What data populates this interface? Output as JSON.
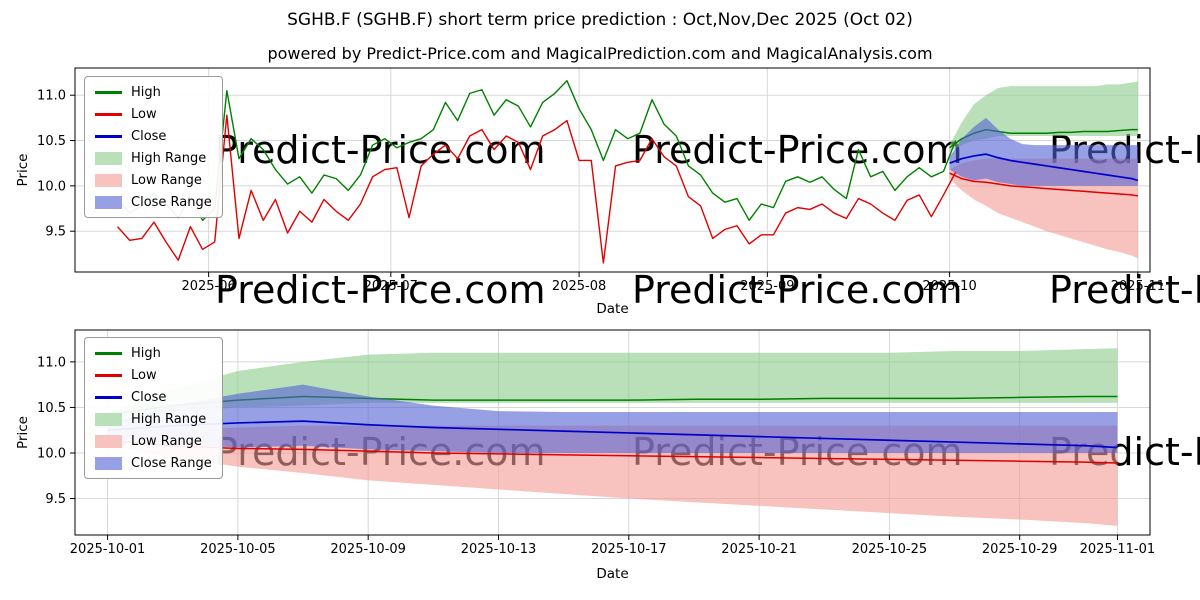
{
  "title": "SGHB.F (SGHB.F) short term price prediction : Oct,Nov,Dec 2025 (Oct 02)",
  "subtitle": "powered by Predict-Price.com and MagicalPrediction.com and MagicalAnalysis.com",
  "watermark": {
    "text": "Predict-Price.com",
    "color": "#cccccc"
  },
  "colors": {
    "high_line": "#008000",
    "low_line": "#e00000",
    "close_line": "#0000cd",
    "high_range_fill": "#8acb8a",
    "low_range_fill": "#f39b94",
    "close_range_fill": "#5361d4",
    "grid": "#d8d8d8",
    "axis": "#000000"
  },
  "legend": [
    {
      "label": "High",
      "swatch": "line",
      "color": "#008000"
    },
    {
      "label": "Low",
      "swatch": "line",
      "color": "#e00000"
    },
    {
      "label": "Close",
      "swatch": "line",
      "color": "#0000cd"
    },
    {
      "label": "High Range",
      "swatch": "patch",
      "color": "#b9e0b9"
    },
    {
      "label": "Low Range",
      "swatch": "patch",
      "color": "#f8c3bf"
    },
    {
      "label": "Close Range",
      "swatch": "patch",
      "color": "#98a0e5"
    }
  ],
  "chart_data": [
    {
      "type": "line",
      "name": "price-history-and-prediction",
      "xlabel": "Date",
      "ylabel": "Price",
      "ylim": [
        9.05,
        11.3
      ],
      "yticks": [
        9.5,
        10.0,
        10.5,
        11.0
      ],
      "xdomain": [
        "2025-05-10",
        "2025-11-03"
      ],
      "xticks": [
        {
          "date": "2025-06-01",
          "label": "2025-06"
        },
        {
          "date": "2025-07-01",
          "label": "2025-07"
        },
        {
          "date": "2025-08-01",
          "label": "2025-08"
        },
        {
          "date": "2025-09-01",
          "label": "2025-09"
        },
        {
          "date": "2025-10-01",
          "label": "2025-10"
        },
        {
          "date": "2025-11-01",
          "label": "2025-11"
        }
      ],
      "history": {
        "dates": [
          "2025-05-17",
          "2025-05-19",
          "2025-05-21",
          "2025-05-23",
          "2025-05-25",
          "2025-05-27",
          "2025-05-29",
          "2025-05-31",
          "2025-06-02",
          "2025-06-04",
          "2025-06-06",
          "2025-06-08",
          "2025-06-10",
          "2025-06-12",
          "2025-06-14",
          "2025-06-16",
          "2025-06-18",
          "2025-06-20",
          "2025-06-22",
          "2025-06-24",
          "2025-06-26",
          "2025-06-28",
          "2025-06-30",
          "2025-07-02",
          "2025-07-04",
          "2025-07-06",
          "2025-07-08",
          "2025-07-10",
          "2025-07-12",
          "2025-07-14",
          "2025-07-16",
          "2025-07-18",
          "2025-07-20",
          "2025-07-22",
          "2025-07-24",
          "2025-07-26",
          "2025-07-28",
          "2025-07-30",
          "2025-08-01",
          "2025-08-03",
          "2025-08-05",
          "2025-08-07",
          "2025-08-09",
          "2025-08-11",
          "2025-08-13",
          "2025-08-15",
          "2025-08-17",
          "2025-08-19",
          "2025-08-21",
          "2025-08-23",
          "2025-08-25",
          "2025-08-27",
          "2025-08-29",
          "2025-08-31",
          "2025-09-02",
          "2025-09-04",
          "2025-09-06",
          "2025-09-08",
          "2025-09-10",
          "2025-09-12",
          "2025-09-14",
          "2025-09-16",
          "2025-09-18",
          "2025-09-20",
          "2025-09-22",
          "2025-09-24",
          "2025-09-26",
          "2025-09-28",
          "2025-09-30",
          "2025-10-02"
        ],
        "high": [
          9.85,
          9.7,
          9.78,
          9.92,
          9.8,
          9.65,
          9.88,
          9.62,
          9.75,
          11.05,
          10.3,
          10.52,
          10.4,
          10.18,
          10.02,
          10.1,
          9.92,
          10.12,
          10.08,
          9.95,
          10.12,
          10.45,
          10.52,
          10.42,
          10.48,
          10.52,
          10.62,
          10.92,
          10.72,
          11.02,
          11.06,
          10.78,
          10.95,
          10.88,
          10.65,
          10.92,
          11.02,
          11.16,
          10.85,
          10.62,
          10.28,
          10.62,
          10.52,
          10.58,
          10.95,
          10.68,
          10.55,
          10.22,
          10.12,
          9.92,
          9.82,
          9.86,
          9.62,
          9.8,
          9.76,
          10.05,
          10.1,
          10.04,
          10.1,
          9.96,
          9.86,
          10.4,
          10.1,
          10.16,
          9.95,
          10.1,
          10.2,
          10.1,
          10.16,
          10.5
        ],
        "low": [
          9.55,
          9.4,
          9.42,
          9.6,
          9.38,
          9.18,
          9.55,
          9.3,
          9.38,
          10.78,
          9.42,
          9.95,
          9.62,
          9.85,
          9.48,
          9.72,
          9.6,
          9.85,
          9.72,
          9.62,
          9.8,
          10.1,
          10.18,
          10.2,
          9.65,
          10.22,
          10.35,
          10.45,
          10.3,
          10.55,
          10.62,
          10.4,
          10.55,
          10.48,
          10.18,
          10.55,
          10.62,
          10.72,
          10.28,
          10.28,
          9.15,
          10.22,
          10.26,
          10.28,
          10.52,
          10.32,
          10.22,
          9.88,
          9.78,
          9.42,
          9.52,
          9.56,
          9.36,
          9.46,
          9.46,
          9.7,
          9.76,
          9.74,
          9.8,
          9.7,
          9.64,
          9.86,
          9.8,
          9.7,
          9.62,
          9.84,
          9.9,
          9.66,
          9.9,
          10.15
        ]
      },
      "prediction": {
        "dates": [
          "2025-10-01",
          "2025-10-03",
          "2025-10-05",
          "2025-10-07",
          "2025-10-09",
          "2025-10-11",
          "2025-10-13",
          "2025-10-15",
          "2025-10-17",
          "2025-10-19",
          "2025-10-21",
          "2025-10-23",
          "2025-10-25",
          "2025-10-27",
          "2025-10-29",
          "2025-10-31",
          "2025-11-01"
        ],
        "high": [
          10.42,
          10.52,
          10.58,
          10.62,
          10.6,
          10.58,
          10.58,
          10.58,
          10.58,
          10.59,
          10.59,
          10.6,
          10.6,
          10.6,
          10.61,
          10.62,
          10.62
        ],
        "low": [
          10.14,
          10.08,
          10.05,
          10.04,
          10.02,
          10.0,
          9.99,
          9.98,
          9.97,
          9.96,
          9.95,
          9.94,
          9.93,
          9.92,
          9.91,
          9.9,
          9.89
        ],
        "close": [
          10.25,
          10.3,
          10.33,
          10.35,
          10.31,
          10.28,
          10.26,
          10.24,
          10.22,
          10.2,
          10.18,
          10.16,
          10.14,
          10.12,
          10.1,
          10.08,
          10.06
        ],
        "high_range": {
          "upper": [
            10.45,
            10.7,
            10.9,
            11.0,
            11.08,
            11.1,
            11.1,
            11.1,
            11.1,
            11.1,
            11.1,
            11.1,
            11.1,
            11.12,
            11.12,
            11.14,
            11.15
          ],
          "lower": [
            10.38,
            10.45,
            10.5,
            10.52,
            10.55,
            10.55,
            10.55,
            10.55,
            10.55,
            10.55,
            10.55,
            10.55,
            10.55,
            10.55,
            10.55,
            10.55,
            10.55
          ]
        },
        "low_range": {
          "upper": [
            10.18,
            10.25,
            10.28,
            10.3,
            10.3,
            10.3,
            10.3,
            10.3,
            10.3,
            10.3,
            10.3,
            10.3,
            10.3,
            10.3,
            10.3,
            10.3,
            10.3
          ],
          "lower": [
            10.08,
            9.95,
            9.85,
            9.78,
            9.7,
            9.65,
            9.6,
            9.55,
            9.5,
            9.46,
            9.42,
            9.38,
            9.34,
            9.3,
            9.27,
            9.23,
            9.2
          ]
        },
        "close_range": {
          "upper": [
            10.32,
            10.52,
            10.65,
            10.75,
            10.62,
            10.52,
            10.46,
            10.45,
            10.45,
            10.45,
            10.45,
            10.45,
            10.45,
            10.45,
            10.45,
            10.45,
            10.45
          ],
          "lower": [
            10.18,
            10.1,
            10.06,
            10.08,
            10.04,
            10.02,
            10.0,
            10.0,
            10.0,
            10.0,
            10.0,
            10.0,
            10.0,
            10.0,
            10.0,
            10.0,
            10.0
          ]
        }
      }
    },
    {
      "type": "line",
      "name": "prediction-detail",
      "xlabel": "Date",
      "ylabel": "Price",
      "ylim": [
        9.1,
        11.35
      ],
      "yticks": [
        9.5,
        10.0,
        10.5,
        11.0
      ],
      "xdomain": [
        "2025-09-30",
        "2025-11-02"
      ],
      "xticks": [
        {
          "date": "2025-10-01",
          "label": "2025-10-01"
        },
        {
          "date": "2025-10-05",
          "label": "2025-10-05"
        },
        {
          "date": "2025-10-09",
          "label": "2025-10-09"
        },
        {
          "date": "2025-10-13",
          "label": "2025-10-13"
        },
        {
          "date": "2025-10-17",
          "label": "2025-10-17"
        },
        {
          "date": "2025-10-21",
          "label": "2025-10-21"
        },
        {
          "date": "2025-10-25",
          "label": "2025-10-25"
        },
        {
          "date": "2025-10-29",
          "label": "2025-10-29"
        },
        {
          "date": "2025-11-01",
          "label": "2025-11-01"
        }
      ],
      "prediction": {
        "dates": [
          "2025-10-01",
          "2025-10-03",
          "2025-10-05",
          "2025-10-07",
          "2025-10-09",
          "2025-10-11",
          "2025-10-13",
          "2025-10-15",
          "2025-10-17",
          "2025-10-19",
          "2025-10-21",
          "2025-10-23",
          "2025-10-25",
          "2025-10-27",
          "2025-10-29",
          "2025-10-31",
          "2025-11-01"
        ],
        "high": [
          10.42,
          10.52,
          10.58,
          10.62,
          10.6,
          10.58,
          10.58,
          10.58,
          10.58,
          10.59,
          10.59,
          10.6,
          10.6,
          10.6,
          10.61,
          10.62,
          10.62
        ],
        "low": [
          10.14,
          10.08,
          10.05,
          10.04,
          10.02,
          10.0,
          9.99,
          9.98,
          9.97,
          9.96,
          9.95,
          9.94,
          9.93,
          9.92,
          9.91,
          9.9,
          9.89
        ],
        "close": [
          10.25,
          10.3,
          10.33,
          10.35,
          10.31,
          10.28,
          10.26,
          10.24,
          10.22,
          10.2,
          10.18,
          10.16,
          10.14,
          10.12,
          10.1,
          10.08,
          10.06
        ],
        "high_range": {
          "upper": [
            10.45,
            10.7,
            10.9,
            11.0,
            11.08,
            11.1,
            11.1,
            11.1,
            11.1,
            11.1,
            11.1,
            11.1,
            11.1,
            11.12,
            11.12,
            11.14,
            11.15
          ],
          "lower": [
            10.38,
            10.45,
            10.5,
            10.52,
            10.55,
            10.55,
            10.55,
            10.55,
            10.55,
            10.55,
            10.55,
            10.55,
            10.55,
            10.55,
            10.55,
            10.55,
            10.55
          ]
        },
        "low_range": {
          "upper": [
            10.18,
            10.25,
            10.28,
            10.3,
            10.3,
            10.3,
            10.3,
            10.3,
            10.3,
            10.3,
            10.3,
            10.3,
            10.3,
            10.3,
            10.3,
            10.3,
            10.3
          ],
          "lower": [
            10.08,
            9.95,
            9.85,
            9.78,
            9.7,
            9.65,
            9.6,
            9.55,
            9.5,
            9.46,
            9.42,
            9.38,
            9.34,
            9.3,
            9.27,
            9.23,
            9.2
          ]
        },
        "close_range": {
          "upper": [
            10.32,
            10.52,
            10.65,
            10.75,
            10.62,
            10.52,
            10.46,
            10.45,
            10.45,
            10.45,
            10.45,
            10.45,
            10.45,
            10.45,
            10.45,
            10.45,
            10.45
          ],
          "lower": [
            10.18,
            10.1,
            10.06,
            10.08,
            10.04,
            10.02,
            10.0,
            10.0,
            10.0,
            10.0,
            10.0,
            10.0,
            10.0,
            10.0,
            10.0,
            10.0,
            10.0
          ]
        }
      }
    }
  ]
}
